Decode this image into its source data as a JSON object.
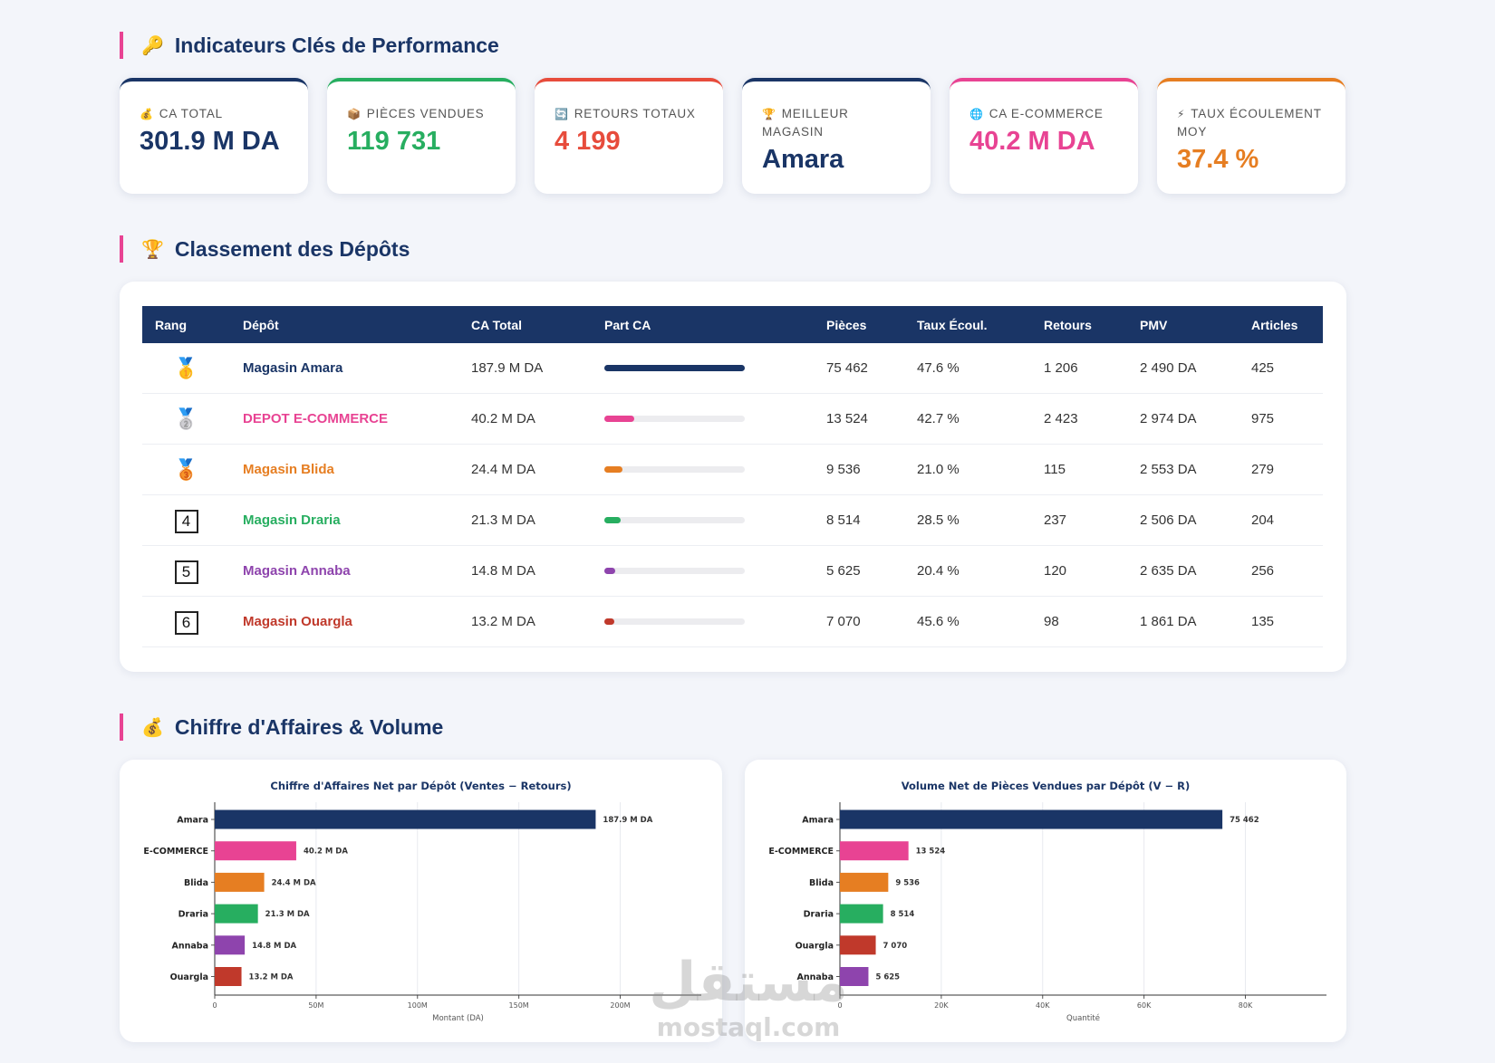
{
  "kpi": {
    "title": "Indicateurs Clés de Performance",
    "icon": "🔑",
    "cards": [
      {
        "icon": "💰",
        "label": "CA TOTAL",
        "value": "301.9 M DA",
        "color": "#1a3566"
      },
      {
        "icon": "📦",
        "label": "PIÈCES VENDUES",
        "value": "119 731",
        "color": "#27ae60"
      },
      {
        "icon": "🔄",
        "label": "RETOURS TOTAUX",
        "value": "4 199",
        "color": "#e74c3c"
      },
      {
        "icon": "🏆",
        "label": "MEILLEUR MAGASIN",
        "value": "Amara",
        "color": "#1a3566"
      },
      {
        "icon": "🌐",
        "label": "CA E-COMMERCE",
        "value": "40.2 M DA",
        "color": "#e84393"
      },
      {
        "icon": "⚡",
        "label": "TAUX ÉCOULEMENT MOY",
        "value": "37.4 %",
        "color": "#e67e22"
      }
    ]
  },
  "table": {
    "title": "Classement des Dépôts",
    "icon": "🏆",
    "headers": [
      "Rang",
      "Dépôt",
      "CA Total",
      "Part CA",
      "Pièces",
      "Taux Écoul.",
      "Retours",
      "PMV",
      "Articles"
    ],
    "rows": [
      {
        "rank": "🥇",
        "depot": "Magasin Amara",
        "color": "#1a3566",
        "ca": "187.9 M DA",
        "share": 187.9,
        "pieces": "75 462",
        "taux": "47.6 %",
        "retours": "1 206",
        "pmv": "2 490 DA",
        "articles": "425"
      },
      {
        "rank": "🥈",
        "depot": "DEPOT E-COMMERCE",
        "color": "#e84393",
        "ca": "40.2 M DA",
        "share": 40.2,
        "pieces": "13 524",
        "taux": "42.7 %",
        "retours": "2 423",
        "pmv": "2 974 DA",
        "articles": "975"
      },
      {
        "rank": "🥉",
        "depot": "Magasin Blida",
        "color": "#e67e22",
        "ca": "24.4 M DA",
        "share": 24.4,
        "pieces": "9 536",
        "taux": "21.0 %",
        "retours": "115",
        "pmv": "2 553 DA",
        "articles": "279"
      },
      {
        "rank": "4",
        "depot": "Magasin Draria",
        "color": "#27ae60",
        "ca": "21.3 M DA",
        "share": 21.3,
        "pieces": "8 514",
        "taux": "28.5 %",
        "retours": "237",
        "pmv": "2 506 DA",
        "articles": "204"
      },
      {
        "rank": "5",
        "depot": "Magasin Annaba",
        "color": "#8e44ad",
        "ca": "14.8 M DA",
        "share": 14.8,
        "pieces": "5 625",
        "taux": "20.4 %",
        "retours": "120",
        "pmv": "2 635 DA",
        "articles": "256"
      },
      {
        "rank": "6",
        "depot": "Magasin Ouargla",
        "color": "#c0392b",
        "ca": "13.2 M DA",
        "share": 13.2,
        "pieces": "7 070",
        "taux": "45.6 %",
        "retours": "98",
        "pmv": "1 861 DA",
        "articles": "135"
      }
    ]
  },
  "charts_section": {
    "title": "Chiffre d'Affaires & Volume",
    "icon": "💰"
  },
  "chart_data": [
    {
      "type": "bar",
      "orientation": "horizontal",
      "title": "Chiffre d'Affaires Net par Dépôt  (Ventes − Retours)",
      "xlabel": "Montant (DA)",
      "categories": [
        "Amara",
        "E-COMMERCE",
        "Blida",
        "Draria",
        "Annaba",
        "Ouargla"
      ],
      "values": [
        187900000,
        40200000,
        24400000,
        21300000,
        14800000,
        13200000
      ],
      "value_labels": [
        "187.9 M DA",
        "40.2 M DA",
        "24.4 M DA",
        "21.3 M DA",
        "14.8 M DA",
        "13.2 M DA"
      ],
      "colors": [
        "#1a3566",
        "#e84393",
        "#e67e22",
        "#27ae60",
        "#8e44ad",
        "#c0392b"
      ],
      "xlim": [
        0,
        240000000
      ],
      "xticks": [
        0,
        {
          "value": 50000000,
          "label": "50M"
        },
        {
          "value": 100000000,
          "label": "100M"
        },
        {
          "value": 150000000,
          "label": "150M"
        },
        {
          "value": 200000000,
          "label": "200M"
        }
      ],
      "grid": true
    },
    {
      "type": "bar",
      "orientation": "horizontal",
      "title": "Volume Net de Pièces Vendues par Dépôt  (V − R)",
      "xlabel": "Quantité",
      "categories": [
        "Amara",
        "E-COMMERCE",
        "Blida",
        "Draria",
        "Ouargla",
        "Annaba"
      ],
      "values": [
        75462,
        13524,
        9536,
        8514,
        7070,
        5625
      ],
      "value_labels": [
        "75 462",
        "13 524",
        "9 536",
        "8 514",
        "7 070",
        "5 625"
      ],
      "colors": [
        "#1a3566",
        "#e84393",
        "#e67e22",
        "#27ae60",
        "#c0392b",
        "#8e44ad"
      ],
      "xlim": [
        0,
        96000
      ],
      "xticks": [
        0,
        {
          "value": 20000,
          "label": "20K"
        },
        {
          "value": 40000,
          "label": "40K"
        },
        {
          "value": 60000,
          "label": "60K"
        },
        {
          "value": 80000,
          "label": "80K"
        }
      ],
      "grid": true
    }
  ],
  "watermark": {
    "arabic": "مستقل",
    "latin": "mostaql.com"
  }
}
